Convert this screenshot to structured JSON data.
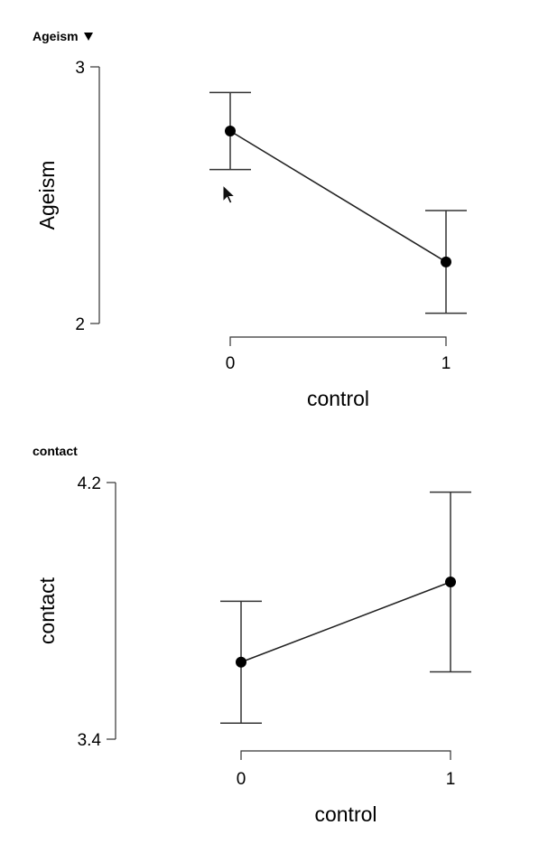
{
  "chart_data": [
    {
      "type": "line",
      "panel_title": "Ageism",
      "has_dropdown": true,
      "xlabel": "control",
      "ylabel": "Ageism",
      "categories": [
        "0",
        "1"
      ],
      "yticks": [
        "2",
        "3"
      ],
      "ylim": [
        2,
        3
      ],
      "series": [
        {
          "values": [
            2.75,
            2.24
          ],
          "error_lower": [
            2.6,
            2.04
          ],
          "error_upper": [
            2.9,
            2.44
          ]
        }
      ],
      "grid": false
    },
    {
      "type": "line",
      "panel_title": "contact",
      "has_dropdown": false,
      "xlabel": "control",
      "ylabel": "contact",
      "categories": [
        "0",
        "1"
      ],
      "yticks": [
        "3.4",
        "4.2"
      ],
      "ylim": [
        3.4,
        4.2
      ],
      "series": [
        {
          "values": [
            3.64,
            3.89
          ],
          "error_lower": [
            3.45,
            3.61
          ],
          "error_upper": [
            3.83,
            4.17
          ]
        }
      ],
      "grid": false
    }
  ],
  "style": {
    "line_color": "#222222",
    "point_color": "#000000",
    "errorbar_color": "#333333"
  },
  "icons": {
    "dropdown": "caret-down-icon",
    "cursor": "mouse-pointer-icon"
  }
}
